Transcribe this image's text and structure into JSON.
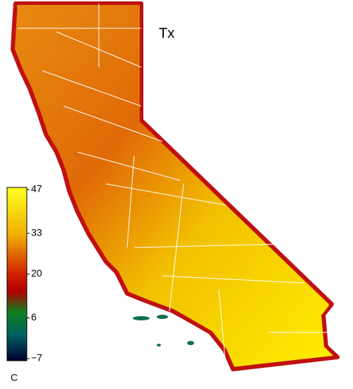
{
  "map": {
    "title": "Tx",
    "colorbar": {
      "unit": "C",
      "lim": [
        -7,
        47
      ],
      "ticks": [
        47,
        33,
        20,
        6,
        {
          "value": -7,
          "label": "−7"
        }
      ]
    }
  }
}
